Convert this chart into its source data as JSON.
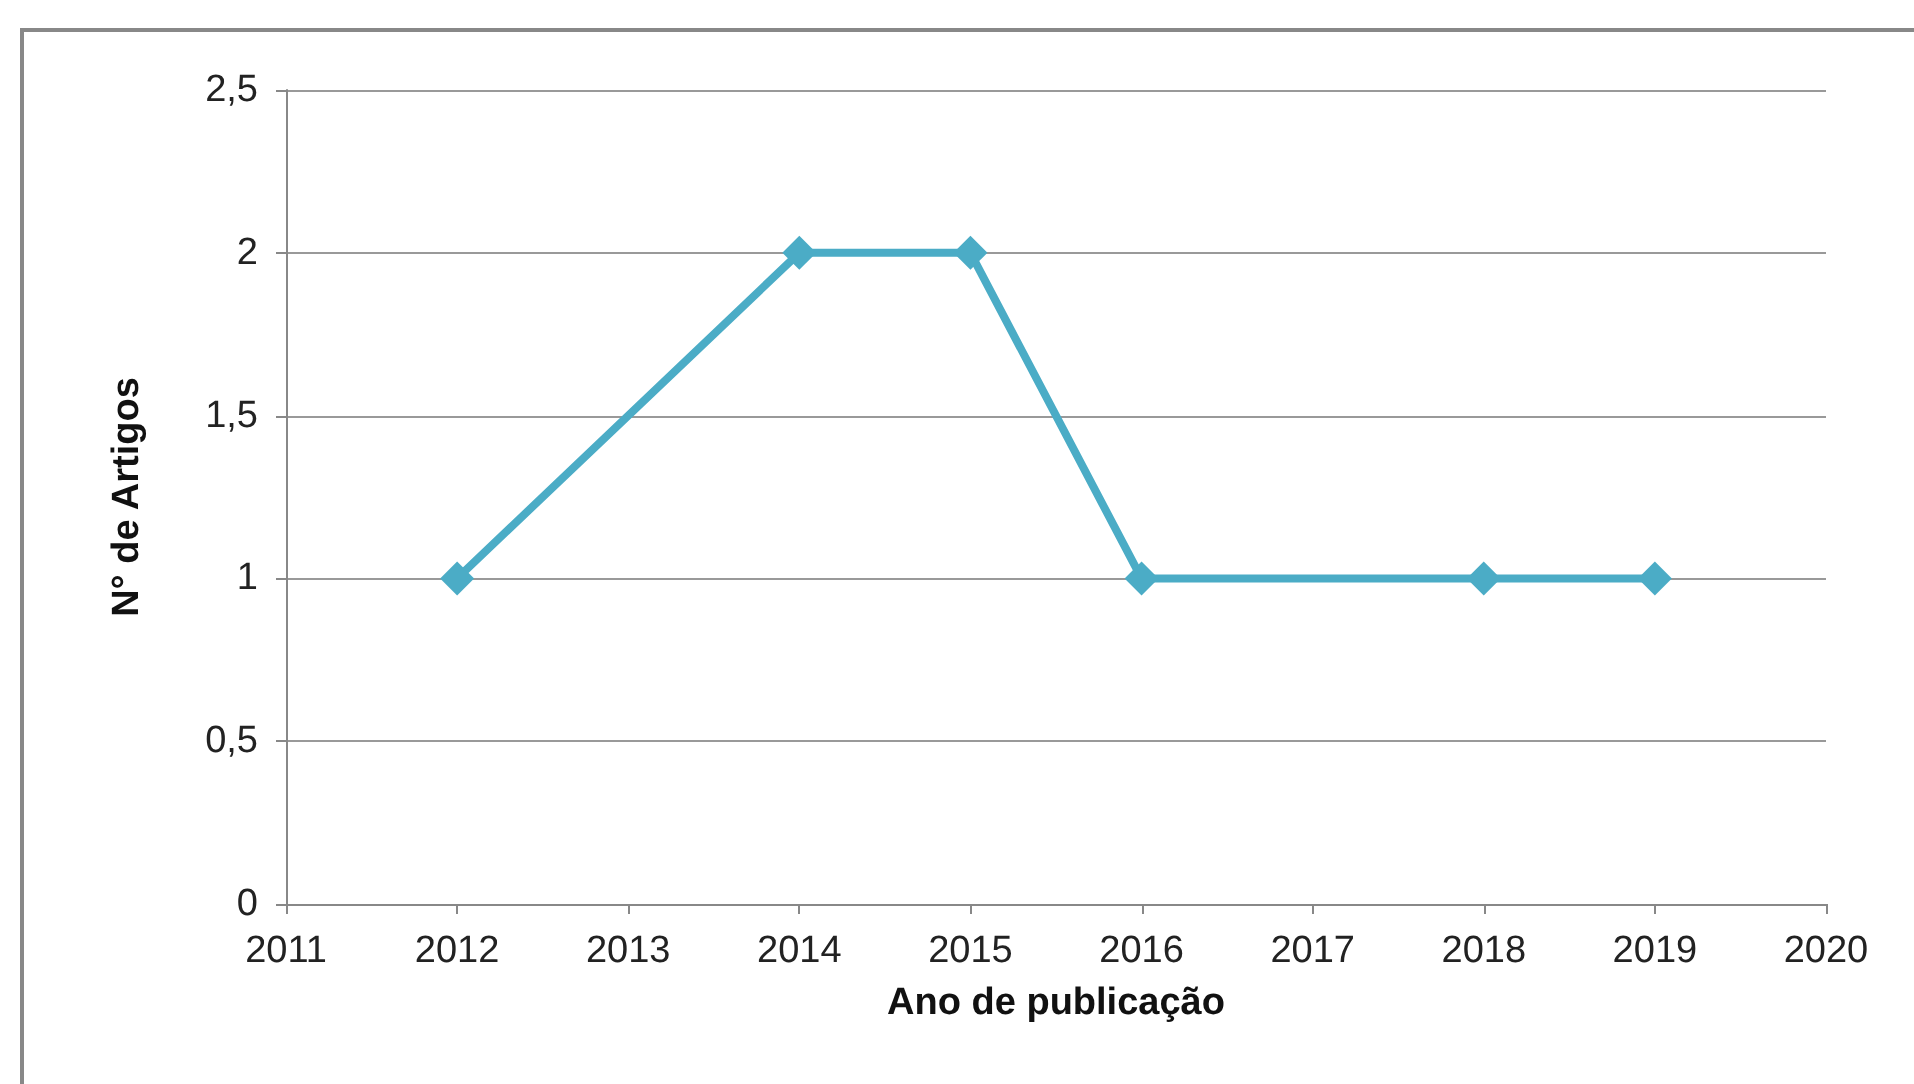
{
  "chart_data": {
    "type": "line",
    "xlabel": "Ano de publicação",
    "ylabel": "N° de Artigos",
    "x": [
      2012,
      2014,
      2015,
      2016,
      2018,
      2019
    ],
    "series": [
      {
        "color": "#4bacc6",
        "values": [
          1,
          2,
          2,
          1,
          1,
          1
        ]
      }
    ],
    "xlim": [
      2011,
      2020
    ],
    "xticks": [
      2011,
      2012,
      2013,
      2014,
      2015,
      2016,
      2017,
      2018,
      2019,
      2020
    ],
    "ylim": [
      0,
      2.5
    ],
    "yticks": [
      0,
      {
        "value": 0.5,
        "label": "0,5"
      },
      1,
      {
        "value": 1.5,
        "label": "1,5"
      },
      2,
      {
        "value": 2.5,
        "label": "2,5"
      }
    ],
    "grid": "y",
    "marker": "diamond",
    "line_style": "solid"
  }
}
